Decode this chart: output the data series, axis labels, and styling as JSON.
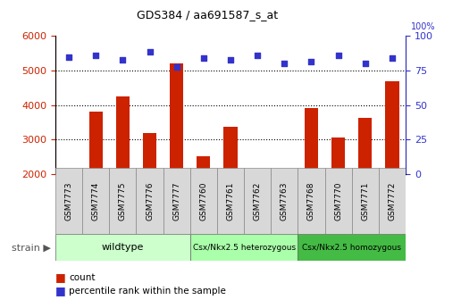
{
  "title": "GDS384 / aa691587_s_at",
  "samples": [
    "GSM7773",
    "GSM7774",
    "GSM7775",
    "GSM7776",
    "GSM7777",
    "GSM7760",
    "GSM7761",
    "GSM7762",
    "GSM7763",
    "GSM7768",
    "GSM7770",
    "GSM7771",
    "GSM7772"
  ],
  "counts": [
    2000,
    3800,
    4250,
    3180,
    5200,
    2520,
    3380,
    2000,
    2000,
    3920,
    3070,
    3630,
    4680
  ],
  "pct_yvals_left": [
    5400,
    5450,
    5300,
    5550,
    5100,
    5350,
    5300,
    5450,
    5200,
    5250,
    5450,
    5200,
    5350
  ],
  "bar_color": "#cc2200",
  "dot_color": "#3333cc",
  "ylim_left": [
    2000,
    6000
  ],
  "ylim_right": [
    0,
    100
  ],
  "yticks_left": [
    2000,
    3000,
    4000,
    5000,
    6000
  ],
  "yticks_right": [
    0,
    25,
    50,
    75,
    100
  ],
  "groups": [
    {
      "label": "wildtype",
      "start": 0,
      "end": 5,
      "color": "#ccffcc"
    },
    {
      "label": "Csx/Nkx2.5 heterozygous",
      "start": 5,
      "end": 9,
      "color": "#aaffaa"
    },
    {
      "label": "Csx/Nkx2.5 homozygous",
      "start": 9,
      "end": 13,
      "color": "#44bb44"
    }
  ],
  "strain_label": "strain",
  "legend_count_label": "count",
  "legend_pct_label": "percentile rank within the sample",
  "left_axis_color": "#cc2200",
  "right_axis_color": "#3333cc",
  "bar_width": 0.5,
  "base_count": 2000
}
